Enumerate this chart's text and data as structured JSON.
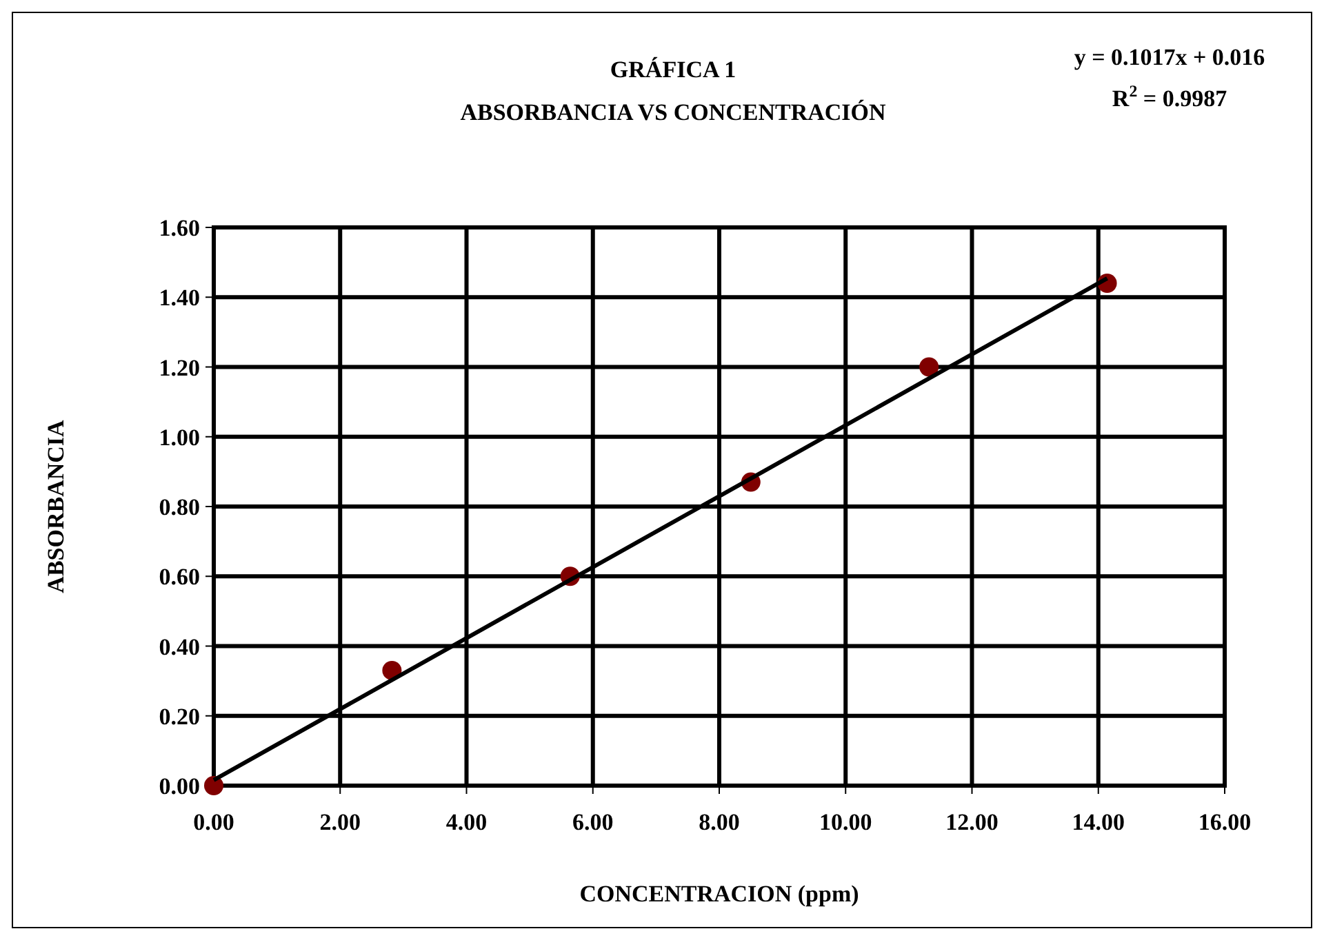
{
  "chart_data": {
    "type": "scatter",
    "title": "GRÁFICA 1",
    "subtitle": "ABSORBANCIA VS CONCENTRACIÓN",
    "xlabel": "CONCENTRACION (ppm)",
    "ylabel": "ABSORBANCIA",
    "annotations": [
      "y = 0.1017x + 0.016",
      "R$^{2}$ = 0.9987"
    ],
    "xlim": [
      0,
      16
    ],
    "ylim": [
      0,
      1.6
    ],
    "xticks": [
      {
        "value": 0,
        "label": "0.00"
      },
      {
        "value": 2,
        "label": "2.00"
      },
      {
        "value": 4,
        "label": "4.00"
      },
      {
        "value": 6,
        "label": "6.00"
      },
      {
        "value": 8,
        "label": "8.00"
      },
      {
        "value": 10,
        "label": "10.00"
      },
      {
        "value": 12,
        "label": "12.00"
      },
      {
        "value": 14,
        "label": "14.00"
      },
      {
        "value": 16,
        "label": "16.00"
      }
    ],
    "yticks": [
      {
        "value": 0,
        "label": "0.00"
      },
      {
        "value": 0.2,
        "label": "0.20"
      },
      {
        "value": 0.4,
        "label": "0.40"
      },
      {
        "value": 0.6,
        "label": "0.60"
      },
      {
        "value": 0.8,
        "label": "0.80"
      },
      {
        "value": 1,
        "label": "1.00"
      },
      {
        "value": 1.2,
        "label": "1.20"
      },
      {
        "value": 1.4,
        "label": "1.40"
      },
      {
        "value": 1.6,
        "label": "1.60"
      }
    ],
    "grid": true,
    "marker": "circle",
    "series": [
      {
        "color": "#800000",
        "x": [
          0,
          2.82,
          5.64,
          8.5,
          11.32,
          14.14
        ],
        "values": [
          0,
          0.33,
          0.6,
          0.87,
          1.2,
          1.44
        ]
      },
      {
        "type": "line",
        "color": "#000000",
        "line_style": "solid",
        "marker": "none",
        "x": [
          0,
          14.14
        ],
        "values": [
          0.016,
          1.454
        ]
      }
    ]
  }
}
